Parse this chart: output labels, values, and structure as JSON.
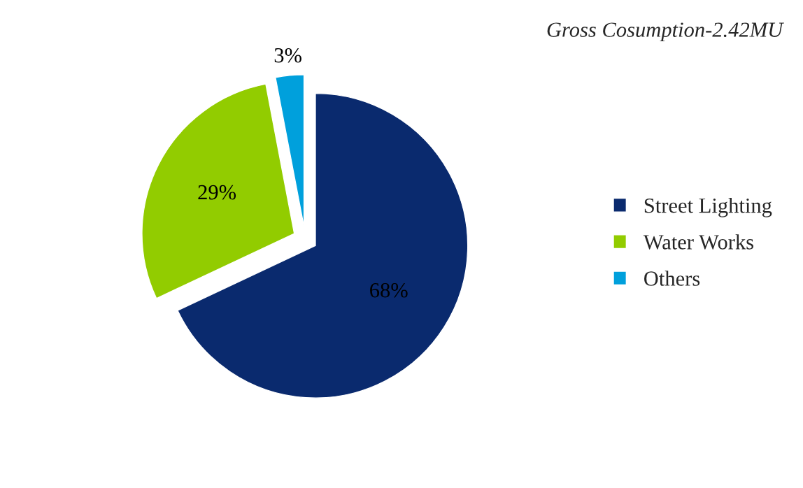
{
  "chart_data": {
    "type": "pie",
    "title": "Gross Cosumption-2.42MU",
    "categories": [
      "Street Lighting",
      "Water Works",
      "Others"
    ],
    "values": [
      68,
      29,
      3
    ],
    "colors": [
      "#0a2a6e",
      "#92cc00",
      "#00a0dc"
    ],
    "value_labels": [
      "68%",
      "29%",
      "3%"
    ],
    "legend": "right"
  }
}
